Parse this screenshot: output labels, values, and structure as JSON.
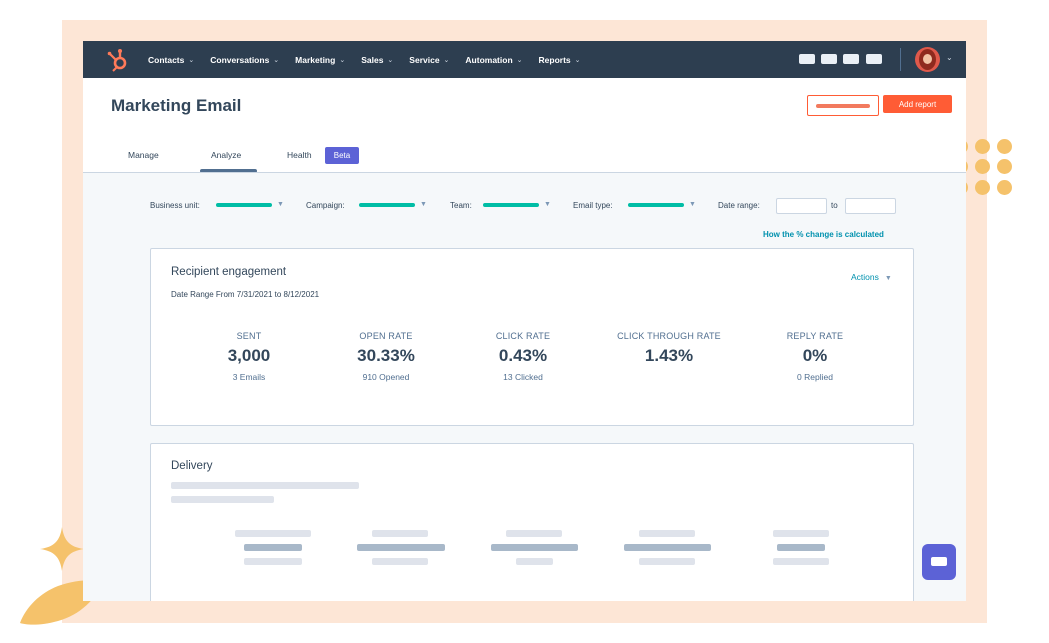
{
  "nav": {
    "items": [
      {
        "label": "Contacts"
      },
      {
        "label": "Conversations"
      },
      {
        "label": "Marketing"
      },
      {
        "label": "Sales"
      },
      {
        "label": "Service"
      },
      {
        "label": "Automation"
      },
      {
        "label": "Reports"
      }
    ],
    "chevron": "⌄"
  },
  "header": {
    "title": "Marketing Email",
    "add_report_label": "Add report"
  },
  "tabs": [
    {
      "label": "Manage"
    },
    {
      "label": "Analyze",
      "active": true
    },
    {
      "label": "Health"
    }
  ],
  "beta_badge": "Beta",
  "filters": {
    "business_unit_label": "Business unit:",
    "campaign_label": "Campaign:",
    "team_label": "Team:",
    "email_type_label": "Email type:",
    "date_range_label": "Date range:",
    "to_label": "to"
  },
  "pct_change_link": "How the % change is calculated",
  "engagement": {
    "title": "Recipient engagement",
    "date_range": "Date Range From 7/31/2021 to 8/12/2021",
    "actions_label": "Actions",
    "metrics": [
      {
        "label": "SENT",
        "value": "3,000",
        "sub": "3 Emails"
      },
      {
        "label": "OPEN RATE",
        "value": "30.33%",
        "sub": "910 Opened"
      },
      {
        "label": "CLICK RATE",
        "value": "0.43%",
        "sub": "13 Clicked"
      },
      {
        "label": "CLICK THROUGH RATE",
        "value": "1.43%",
        "sub": ""
      },
      {
        "label": "REPLY RATE",
        "value": "0%",
        "sub": "0 Replied"
      }
    ]
  },
  "delivery": {
    "title": "Delivery"
  },
  "colors": {
    "nav_bg": "#2d3e50",
    "accent_orange": "#ff5c35",
    "teal": "#00bda5",
    "link": "#0091ae",
    "beta_purple": "#5c62d6",
    "frame_peach": "#fde6d6",
    "decor_yellow": "#f5c26b"
  },
  "icons": {
    "logo": "hubspot-sprocket-icon",
    "chat": "chat-icon",
    "caret": "caret-down-icon"
  }
}
